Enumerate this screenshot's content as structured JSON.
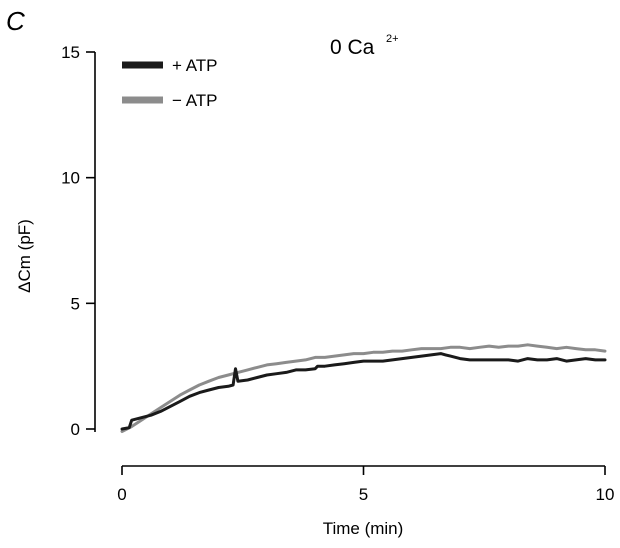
{
  "panel_letter": "C",
  "chart_data": {
    "type": "line",
    "title": "",
    "annotation": {
      "base": "0 Ca",
      "superscript": "2+"
    },
    "xlabel": "Time (min)",
    "ylabel": "ΔCm (pF)",
    "xlim": [
      0,
      10
    ],
    "ylim": [
      0,
      15
    ],
    "xticks": [
      0,
      5,
      10
    ],
    "yticks": [
      0,
      5,
      10,
      15
    ],
    "grid": false,
    "legend_position": "top-left",
    "series": [
      {
        "name": "+ ATP",
        "color": "#1a1a1a",
        "x": [
          0,
          0.15,
          0.2,
          0.4,
          0.6,
          0.8,
          1.0,
          1.2,
          1.4,
          1.6,
          1.8,
          2.0,
          2.2,
          2.3,
          2.35,
          2.4,
          2.6,
          2.8,
          3.0,
          3.2,
          3.4,
          3.6,
          3.8,
          4.0,
          4.05,
          4.2,
          4.4,
          4.6,
          4.8,
          5.0,
          5.2,
          5.4,
          5.6,
          5.8,
          6.0,
          6.2,
          6.4,
          6.6,
          6.7,
          6.8,
          7.0,
          7.2,
          7.4,
          7.6,
          7.8,
          8.0,
          8.2,
          8.4,
          8.6,
          8.8,
          9.0,
          9.2,
          9.4,
          9.6,
          9.8,
          10.0
        ],
        "y": [
          0.0,
          0.05,
          0.35,
          0.45,
          0.55,
          0.7,
          0.9,
          1.1,
          1.3,
          1.45,
          1.55,
          1.65,
          1.7,
          1.75,
          2.4,
          1.9,
          1.95,
          2.05,
          2.15,
          2.2,
          2.25,
          2.35,
          2.35,
          2.4,
          2.5,
          2.5,
          2.55,
          2.6,
          2.65,
          2.7,
          2.7,
          2.7,
          2.75,
          2.8,
          2.85,
          2.9,
          2.95,
          3.0,
          2.95,
          2.9,
          2.8,
          2.75,
          2.75,
          2.75,
          2.75,
          2.75,
          2.7,
          2.8,
          2.75,
          2.75,
          2.8,
          2.7,
          2.75,
          2.8,
          2.75,
          2.75
        ]
      },
      {
        "name": "− ATP",
        "color": "#8c8c8c",
        "x": [
          0,
          0.2,
          0.4,
          0.6,
          0.8,
          1.0,
          1.2,
          1.4,
          1.6,
          1.8,
          2.0,
          2.2,
          2.4,
          2.6,
          2.8,
          3.0,
          3.2,
          3.4,
          3.6,
          3.8,
          4.0,
          4.2,
          4.4,
          4.6,
          4.8,
          5.0,
          5.2,
          5.4,
          5.6,
          5.8,
          6.0,
          6.2,
          6.4,
          6.6,
          6.8,
          7.0,
          7.2,
          7.4,
          7.6,
          7.8,
          8.0,
          8.2,
          8.4,
          8.6,
          8.8,
          9.0,
          9.2,
          9.4,
          9.6,
          9.8,
          10.0
        ],
        "y": [
          -0.1,
          0.1,
          0.35,
          0.6,
          0.85,
          1.1,
          1.35,
          1.55,
          1.75,
          1.9,
          2.05,
          2.15,
          2.25,
          2.35,
          2.45,
          2.55,
          2.6,
          2.65,
          2.7,
          2.75,
          2.85,
          2.85,
          2.9,
          2.95,
          3.0,
          3.0,
          3.05,
          3.05,
          3.1,
          3.1,
          3.15,
          3.2,
          3.2,
          3.2,
          3.25,
          3.25,
          3.2,
          3.25,
          3.3,
          3.25,
          3.3,
          3.3,
          3.35,
          3.3,
          3.25,
          3.2,
          3.25,
          3.2,
          3.15,
          3.15,
          3.1
        ]
      }
    ]
  }
}
